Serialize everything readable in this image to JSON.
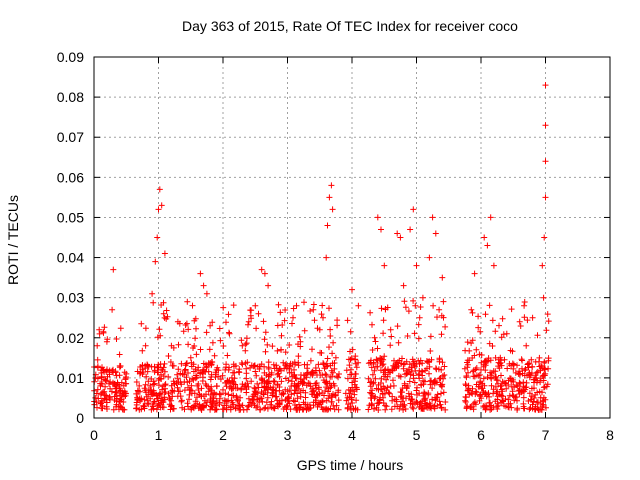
{
  "chart_data": {
    "type": "scatter",
    "title": "Day 363 of 2015, Rate Of TEC Index for receiver coco",
    "xlabel": "GPS time / hours",
    "ylabel": "ROTI / TECUs",
    "xlim": [
      0,
      8
    ],
    "ylim": [
      0,
      0.09
    ],
    "grid": true,
    "marker": "+",
    "x_ticks": [
      0,
      1,
      2,
      3,
      4,
      5,
      6,
      7,
      8
    ],
    "x_tick_labels": [
      "0",
      "1",
      "2",
      "3",
      "4",
      "5",
      "6",
      "7",
      "8"
    ],
    "y_ticks": [
      0,
      0.01,
      0.02,
      0.03,
      0.04,
      0.05,
      0.06,
      0.07,
      0.08,
      0.09
    ],
    "y_tick_labels": [
      "0",
      "0.01",
      "0.02",
      "0.03",
      "0.04",
      "0.05",
      "0.06",
      "0.07",
      "0.08",
      "0.09"
    ],
    "series": [
      {
        "name": "ROTI",
        "color": "#ff0000",
        "x": [
          0.02,
          0.05,
          0.08,
          0.1,
          0.12,
          0.15,
          0.2,
          0.25,
          0.28,
          0.3,
          0.35,
          0.4,
          0.45,
          0.5,
          0.7,
          0.75,
          0.8,
          0.85,
          0.9,
          0.95,
          0.98,
          1.0,
          1.02,
          1.05,
          1.08,
          1.1,
          1.2,
          1.3,
          1.4,
          1.5,
          1.6,
          1.65,
          1.7,
          1.75,
          1.8,
          1.9,
          2.0,
          2.1,
          2.2,
          2.3,
          2.4,
          2.5,
          2.55,
          2.6,
          2.65,
          2.7,
          2.8,
          2.9,
          3.0,
          3.1,
          3.2,
          3.3,
          3.4,
          3.5,
          3.55,
          3.6,
          3.62,
          3.65,
          3.68,
          3.7,
          3.75,
          3.95,
          4.0,
          4.05,
          4.1,
          4.3,
          4.35,
          4.4,
          4.45,
          4.5,
          4.6,
          4.7,
          4.75,
          4.8,
          4.9,
          4.95,
          5.0,
          5.05,
          5.1,
          5.2,
          5.25,
          5.3,
          5.35,
          5.4,
          5.8,
          5.85,
          5.9,
          6.0,
          6.05,
          6.1,
          6.15,
          6.2,
          6.3,
          6.4,
          6.5,
          6.6,
          6.7,
          6.8,
          6.9,
          6.95,
          6.97,
          6.98,
          7.0,
          7.0,
          7.0,
          7.0
        ],
        "y": [
          0.005,
          0.018,
          0.022,
          0.008,
          0.004,
          0.012,
          0.019,
          0.009,
          0.027,
          0.037,
          0.008,
          0.013,
          0.006,
          0.011,
          0.008,
          0.013,
          0.018,
          0.007,
          0.031,
          0.039,
          0.045,
          0.052,
          0.057,
          0.053,
          0.026,
          0.041,
          0.018,
          0.024,
          0.009,
          0.015,
          0.008,
          0.036,
          0.033,
          0.031,
          0.023,
          0.012,
          0.007,
          0.021,
          0.013,
          0.018,
          0.024,
          0.028,
          0.026,
          0.037,
          0.036,
          0.033,
          0.009,
          0.017,
          0.003,
          0.012,
          0.019,
          0.011,
          0.027,
          0.022,
          0.025,
          0.04,
          0.048,
          0.055,
          0.058,
          0.052,
          0.015,
          0.007,
          0.032,
          0.011,
          0.028,
          0.009,
          0.02,
          0.05,
          0.047,
          0.038,
          0.022,
          0.046,
          0.045,
          0.033,
          0.047,
          0.052,
          0.038,
          0.025,
          0.03,
          0.04,
          0.05,
          0.046,
          0.027,
          0.035,
          0.007,
          0.027,
          0.036,
          0.012,
          0.045,
          0.043,
          0.05,
          0.038,
          0.015,
          0.021,
          0.009,
          0.024,
          0.018,
          0.025,
          0.014,
          0.038,
          0.03,
          0.045,
          0.055,
          0.064,
          0.073,
          0.083
        ]
      }
    ],
    "dense_segments": [
      {
        "start": 0.0,
        "end": 0.5,
        "base_max": 0.011,
        "spike_max": 0.024
      },
      {
        "start": 0.65,
        "end": 3.8,
        "base_max": 0.012,
        "spike_max": 0.025
      },
      {
        "start": 3.9,
        "end": 4.1,
        "base_max": 0.013,
        "spike_max": 0.024
      },
      {
        "start": 4.25,
        "end": 5.45,
        "base_max": 0.013,
        "spike_max": 0.026
      },
      {
        "start": 5.75,
        "end": 7.05,
        "base_max": 0.013,
        "spike_max": 0.025
      }
    ]
  }
}
